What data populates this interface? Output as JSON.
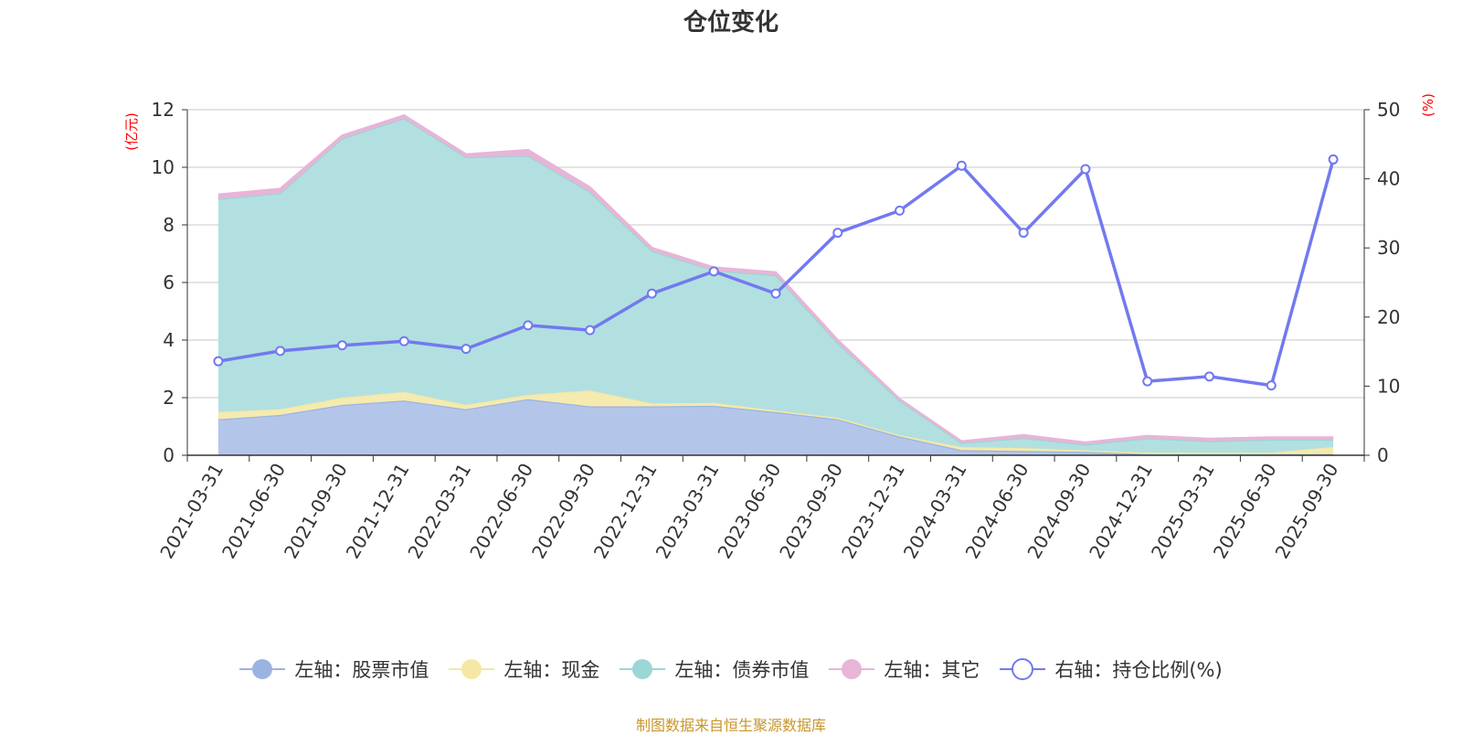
{
  "chart_data": {
    "type": "area",
    "title": "仓位变化",
    "categories": [
      "2021-03-31",
      "2021-06-30",
      "2021-09-30",
      "2021-12-31",
      "2022-03-31",
      "2022-06-30",
      "2022-09-30",
      "2022-12-31",
      "2023-03-31",
      "2023-06-30",
      "2023-09-30",
      "2023-12-31",
      "2024-03-31",
      "2024-06-30",
      "2024-09-30",
      "2024-12-31",
      "2025-03-31",
      "2025-06-30",
      "2025-09-30"
    ],
    "left_axis": {
      "unit": "(亿元)",
      "ylim": [
        0,
        12
      ],
      "ticks": [
        "0",
        "2",
        "4",
        "6",
        "8",
        "10",
        "12"
      ]
    },
    "right_axis": {
      "unit": "(%)",
      "ylim": [
        0,
        50
      ],
      "ticks": [
        "0",
        "10",
        "20",
        "30",
        "40",
        "50"
      ]
    },
    "series": [
      {
        "name": "左轴：股票市值",
        "axis": "left",
        "stack": true,
        "color": "#9ab4e2",
        "fill": "#b3c6ea",
        "values": [
          1.25,
          1.4,
          1.75,
          1.9,
          1.6,
          1.95,
          1.7,
          1.7,
          1.72,
          1.5,
          1.25,
          0.65,
          0.18,
          0.15,
          0.12,
          0.04,
          0.04,
          0.04,
          0.04
        ]
      },
      {
        "name": "左轴：现金",
        "axis": "left",
        "stack": true,
        "color": "#f6e7a4",
        "fill": "#f5eab0",
        "values": [
          0.25,
          0.2,
          0.25,
          0.3,
          0.15,
          0.15,
          0.55,
          0.1,
          0.1,
          0.05,
          0.05,
          0.05,
          0.1,
          0.1,
          0.05,
          0.05,
          0.05,
          0.05,
          0.25
        ]
      },
      {
        "name": "左轴：债券市值",
        "axis": "left",
        "stack": true,
        "color": "#9cd6d6",
        "fill": "#b2e0e0",
        "values": [
          7.4,
          7.5,
          9.0,
          9.5,
          8.6,
          8.3,
          6.9,
          5.3,
          4.6,
          4.7,
          2.6,
          1.2,
          0.15,
          0.35,
          0.2,
          0.5,
          0.4,
          0.45,
          0.25
        ]
      },
      {
        "name": "左轴：其它",
        "axis": "left",
        "stack": true,
        "color": "#e8b4d8",
        "fill": "#e8b4d8",
        "values": [
          0.15,
          0.15,
          0.1,
          0.1,
          0.1,
          0.2,
          0.15,
          0.1,
          0.1,
          0.1,
          0.1,
          0.05,
          0.05,
          0.1,
          0.07,
          0.08,
          0.08,
          0.08,
          0.08
        ]
      },
      {
        "name": "右轴：持仓比例(%)",
        "axis": "right",
        "type": "line",
        "color": "#7279f0",
        "values": [
          13.6,
          15.1,
          15.9,
          16.5,
          15.4,
          18.8,
          18.1,
          23.4,
          26.6,
          23.4,
          32.2,
          35.4,
          41.9,
          32.2,
          41.4,
          10.7,
          11.4,
          10.1,
          42.8
        ]
      }
    ],
    "legend_position": "bottom",
    "grid": true
  },
  "source_note": "制图数据来自恒生聚源数据库"
}
